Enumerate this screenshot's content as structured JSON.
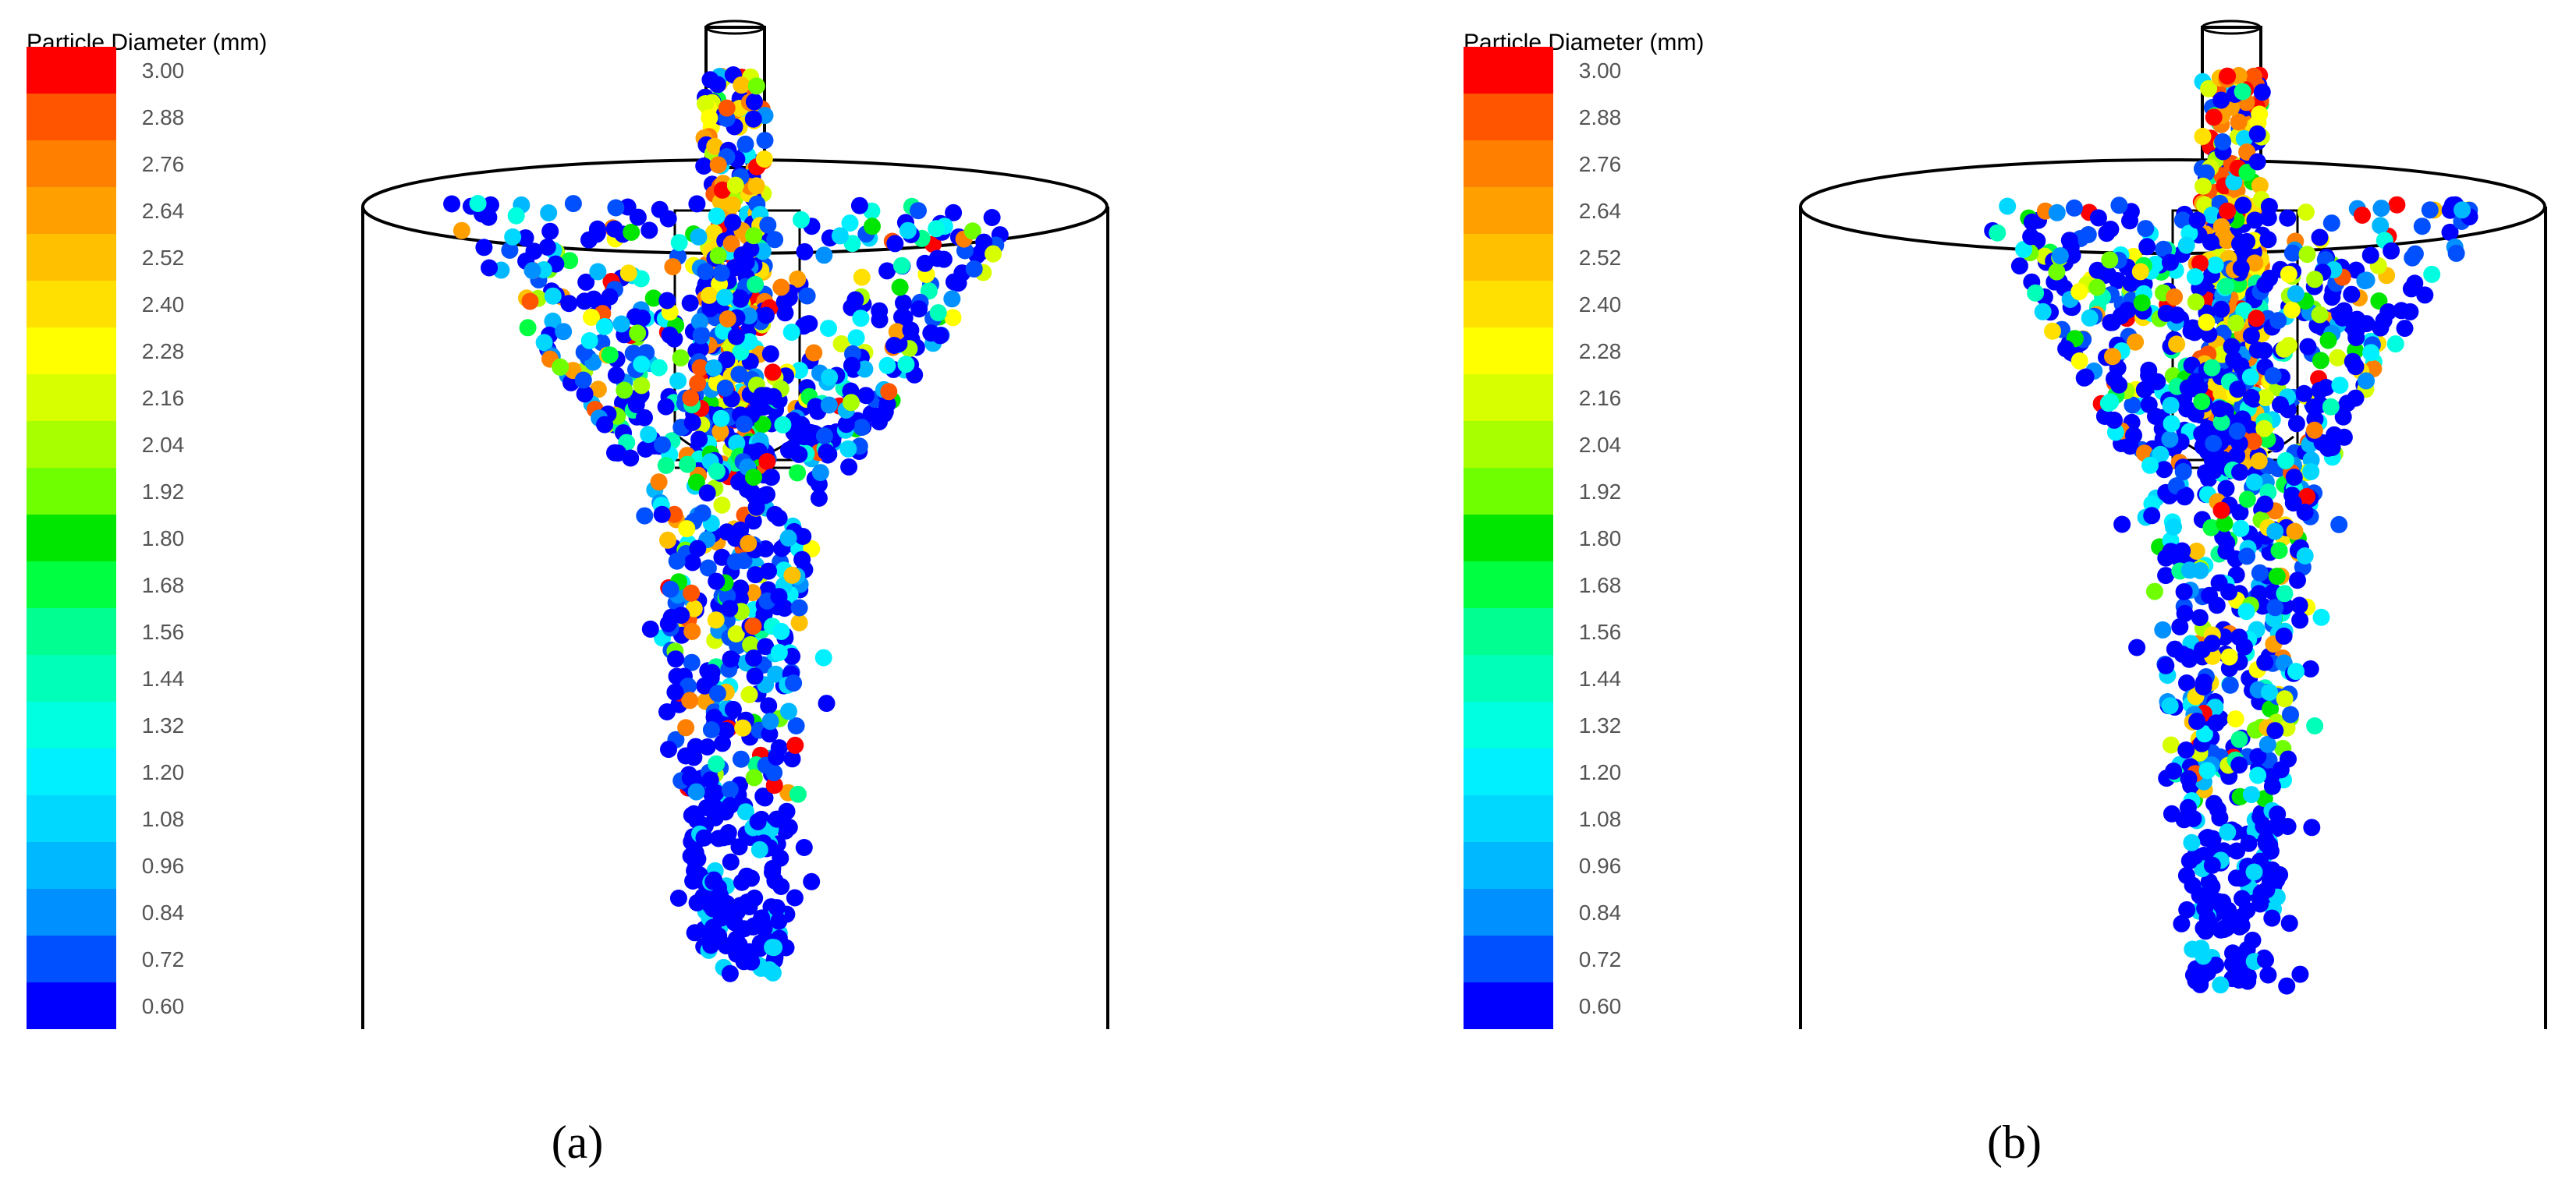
{
  "legend": {
    "title": "Particle Diameter (mm)",
    "ticks": [
      "3.00",
      "2.88",
      "2.76",
      "2.64",
      "2.52",
      "2.40",
      "2.28",
      "2.16",
      "2.04",
      "1.92",
      "1.80",
      "1.68",
      "1.56",
      "1.44",
      "1.32",
      "1.20",
      "1.08",
      "0.96",
      "0.84",
      "0.72",
      "0.60"
    ],
    "band_colors": [
      "#ff0000",
      "#ff5500",
      "#ff8000",
      "#ffa000",
      "#ffc000",
      "#ffe000",
      "#ffff00",
      "#d8ff00",
      "#a8ff00",
      "#70ff00",
      "#00e600",
      "#00ff40",
      "#00ff90",
      "#00ffb8",
      "#00ffe0",
      "#00f0ff",
      "#00d8ff",
      "#00b8ff",
      "#0090ff",
      "#0050ff",
      "#0000ff"
    ]
  },
  "panels": [
    {
      "id": "a",
      "caption": "(a)",
      "spray": "wide"
    },
    {
      "id": "b",
      "caption": "(b)",
      "spray": "narrow"
    }
  ]
}
